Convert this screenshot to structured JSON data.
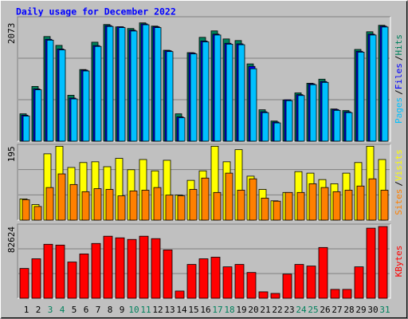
{
  "chart_data": [
    {
      "type": "bar",
      "title": "Daily usage for December 2022",
      "ylim": [
        0,
        2180
      ],
      "yticks": [
        2073
      ],
      "legend_separator": "/",
      "series": [
        {
          "name": "Hits",
          "color": "#00805c",
          "values": [
            479,
            959,
            1833,
            1678,
            804,
            1255,
            1734,
            2044,
            2002,
            1974,
            2073,
            2016,
            1593,
            479,
            1551,
            1819,
            1932,
            1791,
            1763,
            1354,
            550,
            353,
            719,
            846,
            1015,
            1086,
            564,
            536,
            1607,
            1917,
            2030
          ]
        },
        {
          "name": "Files",
          "color": "#0000ff",
          "values": [
            455,
            915,
            1785,
            1615,
            755,
            1245,
            1675,
            2025,
            2005,
            1945,
            2055,
            2005,
            1585,
            425,
            1545,
            1755,
            1875,
            1715,
            1705,
            1310,
            515,
            335,
            725,
            815,
            1005,
            1045,
            555,
            515,
            1575,
            1875,
            2015
          ]
        },
        {
          "name": "Pages",
          "color": "#00c0ff",
          "values": [
            440,
            900,
            1770,
            1600,
            740,
            1230,
            1660,
            2010,
            1990,
            1930,
            2040,
            1990,
            1570,
            410,
            1530,
            1740,
            1860,
            1700,
            1690,
            1270,
            500,
            320,
            710,
            800,
            990,
            1030,
            540,
            500,
            1560,
            1860,
            2000
          ]
        }
      ]
    },
    {
      "type": "bar",
      "ylim": [
        0,
        200
      ],
      "yticks": [
        195
      ],
      "series": [
        {
          "name": "Visits",
          "color": "#ffff00",
          "values": [
            56,
            41,
            175,
            195,
            139,
            152,
            154,
            141,
            163,
            133,
            160,
            130,
            158,
            66,
            105,
            130,
            195,
            154,
            186,
            116,
            81,
            51,
            73,
            128,
            124,
            107,
            96,
            124,
            152,
            195,
            160
          ]
        },
        {
          "name": "Sites",
          "color": "#ff8000",
          "values": [
            54,
            36,
            86,
            122,
            94,
            75,
            83,
            81,
            64,
            77,
            79,
            86,
            66,
            64,
            81,
            111,
            73,
            124,
            79,
            109,
            58,
            50,
            73,
            73,
            96,
            86,
            75,
            79,
            90,
            109,
            79
          ]
        }
      ]
    },
    {
      "type": "bar",
      "ylim": [
        0,
        85400
      ],
      "yticks": [
        82624
      ],
      "categories": [
        "1",
        "2",
        "3",
        "4",
        "5",
        "6",
        "7",
        "8",
        "9",
        "10",
        "11",
        "12",
        "13",
        "14",
        "15",
        "16",
        "17",
        "18",
        "19",
        "20",
        "21",
        "22",
        "23",
        "24",
        "25",
        "26",
        "27",
        "28",
        "29",
        "30",
        "31"
      ],
      "category_colors": [
        "#000000",
        "#000000",
        "#00805c",
        "#00805c",
        "#000000",
        "#000000",
        "#000000",
        "#000000",
        "#000000",
        "#00805c",
        "#00805c",
        "#000000",
        "#000000",
        "#000000",
        "#000000",
        "#000000",
        "#00805c",
        "#00805c",
        "#000000",
        "#000000",
        "#000000",
        "#000000",
        "#000000",
        "#00805c",
        "#00805c",
        "#000000",
        "#000000",
        "#000000",
        "#000000",
        "#000000",
        "#00805c"
      ],
      "series": [
        {
          "name": "KBytes",
          "color": "#ff0000",
          "values": [
            34336,
            45472,
            62176,
            61248,
            41760,
            51040,
            63104,
            71456,
            69600,
            67744,
            71456,
            68672,
            55680,
            8352,
            38976,
            45472,
            47328,
            36192,
            38976,
            29696,
            7424,
            5568,
            27840,
            38976,
            37120,
            58464,
            10208,
            10208,
            36192,
            80736,
            82624
          ]
        }
      ]
    }
  ]
}
